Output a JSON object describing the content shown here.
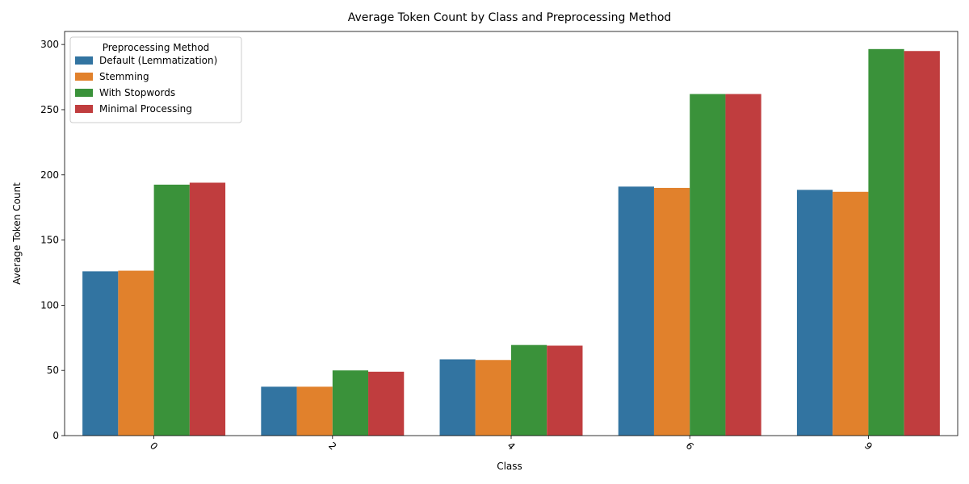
{
  "chart_data": {
    "type": "bar",
    "title": "Average Token Count by Class and Preprocessing Method",
    "xlabel": "Class",
    "ylabel": "Average Token Count",
    "categories": [
      "0",
      "2",
      "4",
      "6",
      "9"
    ],
    "ylim": [
      0,
      310
    ],
    "yticks": [
      0,
      50,
      100,
      150,
      200,
      250,
      300
    ],
    "grid": false,
    "legend": {
      "title": "Preprocessing Method",
      "position": "top-left"
    },
    "series": [
      {
        "name": "Default (Lemmatization)",
        "color": "#3274a1",
        "values": [
          126,
          37.5,
          58.5,
          191,
          188.5
        ]
      },
      {
        "name": "Stemming",
        "color": "#e1812c",
        "values": [
          126.5,
          37.5,
          58,
          190,
          187
        ]
      },
      {
        "name": "With Stopwords",
        "color": "#3a923a",
        "values": [
          192.5,
          50,
          69.5,
          262,
          296.5
        ]
      },
      {
        "name": "Minimal Processing",
        "color": "#c03d3e",
        "values": [
          194,
          49,
          69,
          262,
          295
        ]
      }
    ]
  }
}
